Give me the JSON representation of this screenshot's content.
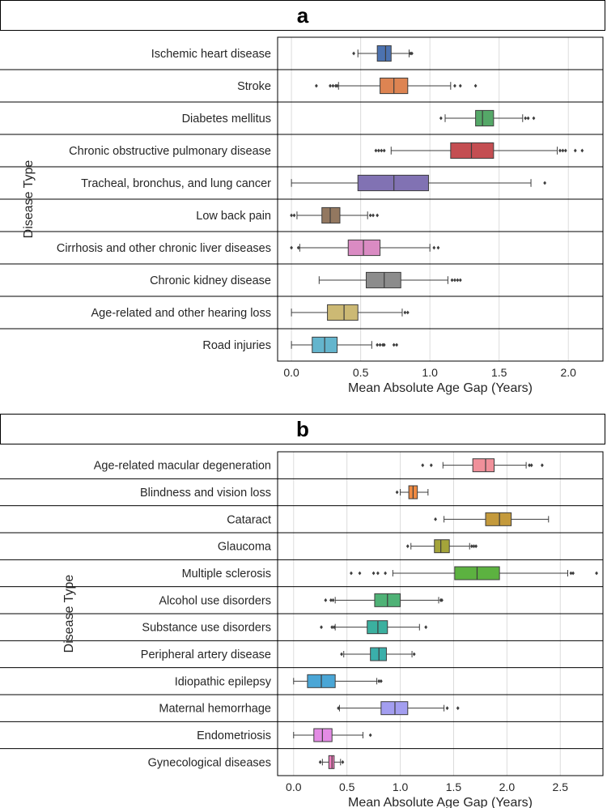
{
  "panels": [
    {
      "label": "a"
    },
    {
      "label": "b"
    }
  ],
  "chart_data": [
    {
      "type": "box",
      "orientation": "horizontal",
      "xlabel": "Mean Absolute Age Gap (Years)",
      "ylabel": "Disease Type",
      "xlim": [
        -0.1,
        2.25
      ],
      "xticks": [
        0.0,
        0.5,
        1.0,
        1.5,
        2.0
      ],
      "xtick_labels": [
        "0.0",
        "0.5",
        "1.0",
        "1.5",
        "2.0"
      ],
      "grid": "vertical",
      "categories": [
        {
          "name": "Ischemic heart disease",
          "color": "#4c72b0",
          "whisker_low": 0.48,
          "q1": 0.62,
          "median": 0.68,
          "q3": 0.72,
          "whisker_high": 0.85,
          "outliers": [
            0.45,
            0.86,
            0.87
          ]
        },
        {
          "name": "Stroke",
          "color": "#dd8452",
          "whisker_low": 0.34,
          "q1": 0.64,
          "median": 0.74,
          "q3": 0.84,
          "whisker_high": 1.15,
          "outliers": [
            0.18,
            0.28,
            0.3,
            0.32,
            0.33,
            1.18,
            1.22,
            1.33
          ]
        },
        {
          "name": "Diabetes mellitus",
          "color": "#55a868",
          "whisker_low": 1.11,
          "q1": 1.33,
          "median": 1.38,
          "q3": 1.46,
          "whisker_high": 1.67,
          "outliers": [
            1.08,
            1.69,
            1.71,
            1.75
          ]
        },
        {
          "name": "Chronic obstructive pulmonary disease",
          "color": "#c44e52",
          "whisker_low": 0.72,
          "q1": 1.15,
          "median": 1.3,
          "q3": 1.46,
          "whisker_high": 1.92,
          "outliers": [
            0.61,
            0.63,
            0.65,
            0.67,
            1.94,
            1.96,
            1.98,
            2.05,
            2.1
          ]
        },
        {
          "name": "Tracheal, bronchus, and lung cancer",
          "color": "#8172b3",
          "whisker_low": 0.0,
          "q1": 0.48,
          "median": 0.74,
          "q3": 0.99,
          "whisker_high": 1.73,
          "outliers": [
            1.83
          ]
        },
        {
          "name": "Low back pain",
          "color": "#937860",
          "whisker_low": 0.04,
          "q1": 0.22,
          "median": 0.28,
          "q3": 0.35,
          "whisker_high": 0.55,
          "outliers": [
            0.0,
            0.02,
            0.57,
            0.59,
            0.62
          ]
        },
        {
          "name": "Cirrhosis and other chronic liver diseases",
          "color": "#da8bc3",
          "whisker_low": 0.06,
          "q1": 0.41,
          "median": 0.52,
          "q3": 0.64,
          "whisker_high": 1.0,
          "outliers": [
            0.0,
            0.05,
            1.03,
            1.06
          ]
        },
        {
          "name": "Chronic kidney disease",
          "color": "#8c8c8c",
          "whisker_low": 0.2,
          "q1": 0.54,
          "median": 0.67,
          "q3": 0.79,
          "whisker_high": 1.13,
          "outliers": [
            1.16,
            1.18,
            1.2,
            1.22
          ]
        },
        {
          "name": "Age-related and other hearing loss",
          "color": "#ccb974",
          "whisker_low": 0.0,
          "q1": 0.26,
          "median": 0.38,
          "q3": 0.48,
          "whisker_high": 0.8,
          "outliers": [
            0.82,
            0.84
          ]
        },
        {
          "name": "Road injuries",
          "color": "#64b5cd",
          "whisker_low": 0.0,
          "q1": 0.15,
          "median": 0.24,
          "q3": 0.33,
          "whisker_high": 0.58,
          "outliers": [
            0.62,
            0.64,
            0.66,
            0.67,
            0.74,
            0.76
          ]
        }
      ]
    },
    {
      "type": "box",
      "orientation": "horizontal",
      "xlabel": "Mean Absolute Age Gap (Years)",
      "ylabel": "Disease Type",
      "xlim": [
        -0.15,
        2.9
      ],
      "xticks": [
        0.0,
        0.5,
        1.0,
        1.5,
        2.0,
        2.5
      ],
      "xtick_labels": [
        "0.0",
        "0.5",
        "1.0",
        "1.5",
        "2.0",
        "2.5"
      ],
      "grid": "vertical",
      "categories": [
        {
          "name": "Age-related macular degeneration",
          "color": "#f0909a",
          "whisker_low": 1.4,
          "q1": 1.68,
          "median": 1.8,
          "q3": 1.88,
          "whisker_high": 2.18,
          "outliers": [
            1.21,
            1.29,
            2.21,
            2.23,
            2.33
          ]
        },
        {
          "name": "Blindness and vision loss",
          "color": "#ef8a43",
          "whisker_low": 1.0,
          "q1": 1.08,
          "median": 1.12,
          "q3": 1.16,
          "whisker_high": 1.26,
          "outliers": [
            0.97
          ]
        },
        {
          "name": "Cataract",
          "color": "#c49a3c",
          "whisker_low": 1.41,
          "q1": 1.8,
          "median": 1.93,
          "q3": 2.04,
          "whisker_high": 2.39,
          "outliers": [
            1.33
          ]
        },
        {
          "name": "Glaucoma",
          "color": "#a4a43a",
          "whisker_low": 1.1,
          "q1": 1.32,
          "median": 1.38,
          "q3": 1.46,
          "whisker_high": 1.65,
          "outliers": [
            1.07,
            1.67,
            1.69,
            1.71
          ]
        },
        {
          "name": "Multiple sclerosis",
          "color": "#5cb240",
          "whisker_low": 0.93,
          "q1": 1.51,
          "median": 1.72,
          "q3": 1.93,
          "whisker_high": 2.57,
          "outliers": [
            0.54,
            0.62,
            0.75,
            0.79,
            0.86,
            2.6,
            2.62,
            2.84
          ]
        },
        {
          "name": "Alcohol use disorders",
          "color": "#4fb276",
          "whisker_low": 0.39,
          "q1": 0.76,
          "median": 0.88,
          "q3": 1.0,
          "whisker_high": 1.36,
          "outliers": [
            0.3,
            0.35,
            0.37,
            1.38,
            1.39
          ]
        },
        {
          "name": "Substance use disorders",
          "color": "#3bb09f",
          "whisker_low": 0.39,
          "q1": 0.69,
          "median": 0.79,
          "q3": 0.88,
          "whisker_high": 1.18,
          "outliers": [
            0.26,
            0.36,
            0.38,
            1.24
          ]
        },
        {
          "name": "Peripheral artery disease",
          "color": "#3aafaa",
          "whisker_low": 0.47,
          "q1": 0.72,
          "median": 0.8,
          "q3": 0.87,
          "whisker_high": 1.11,
          "outliers": [
            0.45,
            1.13
          ]
        },
        {
          "name": "Idiopathic epilepsy",
          "color": "#4aa6d6",
          "whisker_low": 0.0,
          "q1": 0.13,
          "median": 0.26,
          "q3": 0.39,
          "whisker_high": 0.78,
          "outliers": [
            0.8,
            0.82
          ]
        },
        {
          "name": "Maternal hemorrhage",
          "color": "#a39ef0",
          "whisker_low": 0.43,
          "q1": 0.82,
          "median": 0.95,
          "q3": 1.07,
          "whisker_high": 1.41,
          "outliers": [
            0.42,
            1.44,
            1.54
          ]
        },
        {
          "name": "Endometriosis",
          "color": "#e38be4",
          "whisker_low": 0.0,
          "q1": 0.19,
          "median": 0.27,
          "q3": 0.36,
          "whisker_high": 0.65,
          "outliers": [
            0.72
          ]
        },
        {
          "name": "Gynecological diseases",
          "color": "#f27fc0",
          "whisker_low": 0.27,
          "q1": 0.33,
          "median": 0.36,
          "q3": 0.38,
          "whisker_high": 0.44,
          "outliers": [
            0.25,
            0.46
          ]
        }
      ]
    }
  ]
}
